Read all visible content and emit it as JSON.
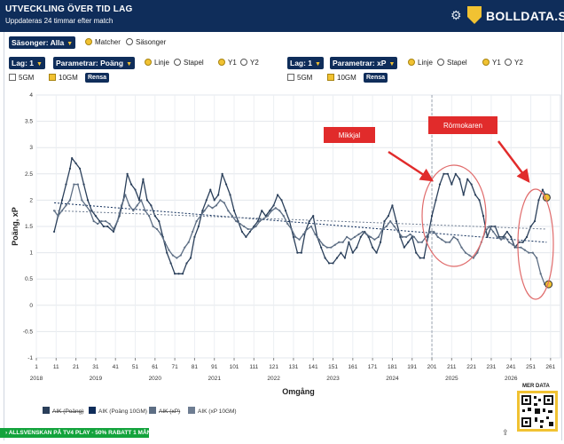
{
  "header": {
    "title": "UTVECKLING ÖVER TID LAG",
    "subtitle": "Uppdateras 24 timmar efter match",
    "brand": "BOLLDATA.SE"
  },
  "controls": {
    "seasons_select": "Säsonger: Alla",
    "opt_matches": "Matcher",
    "opt_seasons": "Säsonger",
    "left": {
      "team": "Lag: 1",
      "param": "Parametrar: Poäng",
      "opt_line": "Linje",
      "opt_bar": "Stapel",
      "y1": "Y1",
      "y2": "Y2",
      "gm5": "5GM",
      "gm10": "10GM",
      "clear": "Rensa"
    },
    "right": {
      "team": "Lag: 1",
      "param": "Parametrar: xP",
      "opt_line": "Linje",
      "opt_bar": "Stapel",
      "y1": "Y1",
      "y2": "Y2",
      "gm5": "5GM",
      "gm10": "10GM",
      "clear": "Rensa"
    }
  },
  "annotations": {
    "a1": "Mikkjal",
    "a2": "Rörmokaren"
  },
  "chart_data": {
    "type": "line",
    "ylabel": "Poäng, xP",
    "xlabel": "Omgång",
    "ylim": [
      -1,
      4
    ],
    "yticks": [
      "-1",
      "-0.5",
      "0",
      "0.5",
      "1",
      "1.5",
      "2",
      "2.5",
      "3",
      "3.5",
      "4"
    ],
    "xlim": [
      1,
      266
    ],
    "xticks": [
      "1",
      "11",
      "21",
      "31",
      "41",
      "51",
      "61",
      "71",
      "81",
      "91",
      "101",
      "111",
      "121",
      "131",
      "141",
      "151",
      "161",
      "171",
      "181",
      "191",
      "201",
      "211",
      "221",
      "231",
      "241",
      "251",
      "261"
    ],
    "season_labels": [
      "2018",
      "2019",
      "2020",
      "2021",
      "2022",
      "2023",
      "2024",
      "2025",
      "2026"
    ],
    "season_starts": [
      1,
      31,
      61,
      91,
      121,
      151,
      181,
      211,
      241
    ],
    "vline_x": 201,
    "series": [
      {
        "name": "AIK (Poäng)",
        "color": "#2a3f5a",
        "points": [
          [
            10,
            1.4
          ],
          [
            12,
            1.7
          ],
          [
            14,
            2.0
          ],
          [
            16,
            2.3
          ],
          [
            18,
            2.6
          ],
          [
            19,
            2.8
          ],
          [
            21,
            2.7
          ],
          [
            23,
            2.6
          ],
          [
            25,
            2.3
          ],
          [
            27,
            2.0
          ],
          [
            29,
            1.8
          ],
          [
            31,
            1.7
          ],
          [
            33,
            1.6
          ],
          [
            35,
            1.5
          ],
          [
            37,
            1.5
          ],
          [
            40,
            1.4
          ],
          [
            43,
            1.7
          ],
          [
            45,
            2.0
          ],
          [
            47,
            2.5
          ],
          [
            49,
            2.3
          ],
          [
            51,
            2.2
          ],
          [
            53,
            2.0
          ],
          [
            55,
            2.4
          ],
          [
            57,
            2.0
          ],
          [
            59,
            1.9
          ],
          [
            61,
            1.7
          ],
          [
            63,
            1.6
          ],
          [
            65,
            1.3
          ],
          [
            67,
            1.0
          ],
          [
            69,
            0.8
          ],
          [
            71,
            0.6
          ],
          [
            73,
            0.6
          ],
          [
            75,
            0.6
          ],
          [
            77,
            0.8
          ],
          [
            79,
            0.9
          ],
          [
            81,
            1.3
          ],
          [
            83,
            1.5
          ],
          [
            85,
            1.8
          ],
          [
            87,
            2.0
          ],
          [
            89,
            2.2
          ],
          [
            91,
            2.0
          ],
          [
            93,
            2.1
          ],
          [
            95,
            2.5
          ],
          [
            97,
            2.3
          ],
          [
            99,
            2.1
          ],
          [
            101,
            1.8
          ],
          [
            103,
            1.6
          ],
          [
            105,
            1.4
          ],
          [
            107,
            1.3
          ],
          [
            109,
            1.4
          ],
          [
            111,
            1.5
          ],
          [
            113,
            1.6
          ],
          [
            115,
            1.8
          ],
          [
            117,
            1.7
          ],
          [
            119,
            1.8
          ],
          [
            121,
            1.9
          ],
          [
            123,
            2.1
          ],
          [
            125,
            2.0
          ],
          [
            127,
            1.8
          ],
          [
            129,
            1.6
          ],
          [
            131,
            1.3
          ],
          [
            133,
            1.0
          ],
          [
            135,
            1.0
          ],
          [
            137,
            1.4
          ],
          [
            139,
            1.6
          ],
          [
            141,
            1.7
          ],
          [
            143,
            1.3
          ],
          [
            145,
            1.1
          ],
          [
            147,
            0.9
          ],
          [
            149,
            0.8
          ],
          [
            151,
            0.8
          ],
          [
            153,
            0.9
          ],
          [
            155,
            1.0
          ],
          [
            157,
            0.9
          ],
          [
            159,
            1.2
          ],
          [
            161,
            1.0
          ],
          [
            163,
            1.1
          ],
          [
            165,
            1.3
          ],
          [
            167,
            1.4
          ],
          [
            169,
            1.3
          ],
          [
            171,
            1.1
          ],
          [
            173,
            1.0
          ],
          [
            175,
            1.2
          ],
          [
            177,
            1.6
          ],
          [
            179,
            1.7
          ],
          [
            181,
            1.9
          ],
          [
            183,
            1.6
          ],
          [
            185,
            1.3
          ],
          [
            187,
            1.1
          ],
          [
            189,
            1.2
          ],
          [
            191,
            1.3
          ],
          [
            193,
            1.0
          ],
          [
            195,
            0.9
          ],
          [
            197,
            0.9
          ],
          [
            199,
            1.3
          ],
          [
            201,
            1.7
          ],
          [
            203,
            2.0
          ],
          [
            205,
            2.3
          ],
          [
            207,
            2.5
          ],
          [
            209,
            2.5
          ],
          [
            211,
            2.3
          ],
          [
            213,
            2.5
          ],
          [
            215,
            2.4
          ],
          [
            217,
            2.1
          ],
          [
            219,
            2.4
          ],
          [
            221,
            2.3
          ],
          [
            223,
            2.1
          ],
          [
            225,
            2.0
          ],
          [
            227,
            1.7
          ],
          [
            229,
            1.3
          ],
          [
            231,
            1.5
          ],
          [
            233,
            1.5
          ],
          [
            235,
            1.3
          ],
          [
            237,
            1.3
          ],
          [
            239,
            1.4
          ],
          [
            241,
            1.3
          ],
          [
            243,
            1.1
          ],
          [
            245,
            1.2
          ],
          [
            247,
            1.2
          ],
          [
            249,
            1.3
          ],
          [
            251,
            1.5
          ],
          [
            253,
            1.6
          ],
          [
            255,
            2.0
          ],
          [
            257,
            2.2
          ],
          [
            259,
            2.05
          ]
        ]
      },
      {
        "name": "AIK (Poäng 10GM)",
        "color": "#0f2d5a",
        "points": [
          [
            10,
            1.95
          ],
          [
            259,
            1.2
          ]
        ]
      },
      {
        "name": "AIK (xP)",
        "color": "#5d6e84",
        "points": [
          [
            10,
            1.8
          ],
          [
            12,
            1.7
          ],
          [
            14,
            1.8
          ],
          [
            16,
            1.9
          ],
          [
            18,
            2.0
          ],
          [
            20,
            2.3
          ],
          [
            22,
            2.3
          ],
          [
            24,
            2.0
          ],
          [
            26,
            1.9
          ],
          [
            28,
            1.8
          ],
          [
            30,
            1.6
          ],
          [
            32,
            1.55
          ],
          [
            34,
            1.6
          ],
          [
            36,
            1.6
          ],
          [
            38,
            1.55
          ],
          [
            40,
            1.45
          ],
          [
            42,
            1.6
          ],
          [
            44,
            1.9
          ],
          [
            46,
            2.1
          ],
          [
            48,
            1.9
          ],
          [
            50,
            1.8
          ],
          [
            52,
            1.9
          ],
          [
            54,
            2.0
          ],
          [
            56,
            1.8
          ],
          [
            58,
            1.7
          ],
          [
            60,
            1.5
          ],
          [
            62,
            1.45
          ],
          [
            64,
            1.35
          ],
          [
            66,
            1.2
          ],
          [
            68,
            1.05
          ],
          [
            70,
            0.95
          ],
          [
            72,
            0.9
          ],
          [
            74,
            0.95
          ],
          [
            76,
            1.1
          ],
          [
            78,
            1.2
          ],
          [
            80,
            1.4
          ],
          [
            82,
            1.6
          ],
          [
            84,
            1.7
          ],
          [
            86,
            1.8
          ],
          [
            88,
            1.9
          ],
          [
            90,
            1.85
          ],
          [
            92,
            1.9
          ],
          [
            94,
            2.0
          ],
          [
            96,
            1.95
          ],
          [
            98,
            1.8
          ],
          [
            100,
            1.7
          ],
          [
            102,
            1.6
          ],
          [
            104,
            1.55
          ],
          [
            106,
            1.5
          ],
          [
            108,
            1.45
          ],
          [
            110,
            1.45
          ],
          [
            112,
            1.5
          ],
          [
            114,
            1.6
          ],
          [
            116,
            1.65
          ],
          [
            118,
            1.7
          ],
          [
            120,
            1.8
          ],
          [
            122,
            1.85
          ],
          [
            124,
            1.8
          ],
          [
            126,
            1.7
          ],
          [
            128,
            1.55
          ],
          [
            130,
            1.45
          ],
          [
            132,
            1.3
          ],
          [
            134,
            1.25
          ],
          [
            136,
            1.35
          ],
          [
            138,
            1.45
          ],
          [
            140,
            1.5
          ],
          [
            142,
            1.35
          ],
          [
            144,
            1.25
          ],
          [
            146,
            1.15
          ],
          [
            148,
            1.1
          ],
          [
            150,
            1.1
          ],
          [
            152,
            1.15
          ],
          [
            154,
            1.2
          ],
          [
            156,
            1.2
          ],
          [
            158,
            1.3
          ],
          [
            160,
            1.25
          ],
          [
            162,
            1.3
          ],
          [
            164,
            1.35
          ],
          [
            166,
            1.4
          ],
          [
            168,
            1.35
          ],
          [
            170,
            1.3
          ],
          [
            172,
            1.25
          ],
          [
            174,
            1.3
          ],
          [
            176,
            1.45
          ],
          [
            178,
            1.5
          ],
          [
            180,
            1.6
          ],
          [
            182,
            1.5
          ],
          [
            184,
            1.4
          ],
          [
            186,
            1.3
          ],
          [
            188,
            1.3
          ],
          [
            190,
            1.35
          ],
          [
            192,
            1.3
          ],
          [
            194,
            1.2
          ],
          [
            196,
            1.2
          ],
          [
            198,
            1.3
          ],
          [
            200,
            1.4
          ],
          [
            202,
            1.4
          ],
          [
            204,
            1.3
          ],
          [
            206,
            1.25
          ],
          [
            208,
            1.2
          ],
          [
            210,
            1.2
          ],
          [
            212,
            1.3
          ],
          [
            214,
            1.25
          ],
          [
            216,
            1.1
          ],
          [
            218,
            1.0
          ],
          [
            220,
            0.95
          ],
          [
            222,
            0.9
          ],
          [
            224,
            1.0
          ],
          [
            226,
            1.2
          ],
          [
            228,
            1.4
          ],
          [
            230,
            1.5
          ],
          [
            232,
            1.4
          ],
          [
            234,
            1.3
          ],
          [
            236,
            1.25
          ],
          [
            238,
            1.3
          ],
          [
            240,
            1.2
          ],
          [
            242,
            1.15
          ],
          [
            244,
            1.1
          ],
          [
            246,
            1.1
          ],
          [
            248,
            1.05
          ],
          [
            250,
            1.0
          ],
          [
            252,
            1.0
          ],
          [
            254,
            0.9
          ],
          [
            256,
            0.6
          ],
          [
            258,
            0.4
          ],
          [
            260,
            0.4
          ]
        ]
      },
      {
        "name": "AIK (xP 10GM)",
        "color": "#6e7d92",
        "points": [
          [
            10,
            1.8
          ],
          [
            259,
            1.45
          ]
        ]
      }
    ],
    "legend_entries": [
      "AIK (Poäng)",
      "AIK (Poäng 10GM)",
      "AIK (xP)",
      "AIK (xP 10GM)"
    ],
    "legend_placement": "bottom"
  },
  "footer": {
    "banner": "ALLSVENSKAN PÅ TV4 PLAY - 50% RABATT 1 MÅN",
    "mer_data": "MER DATA"
  },
  "colors": {
    "navy": "#0f2d5a",
    "yellow": "#f1c232",
    "red": "#e12b2b",
    "green": "#13a33c"
  }
}
